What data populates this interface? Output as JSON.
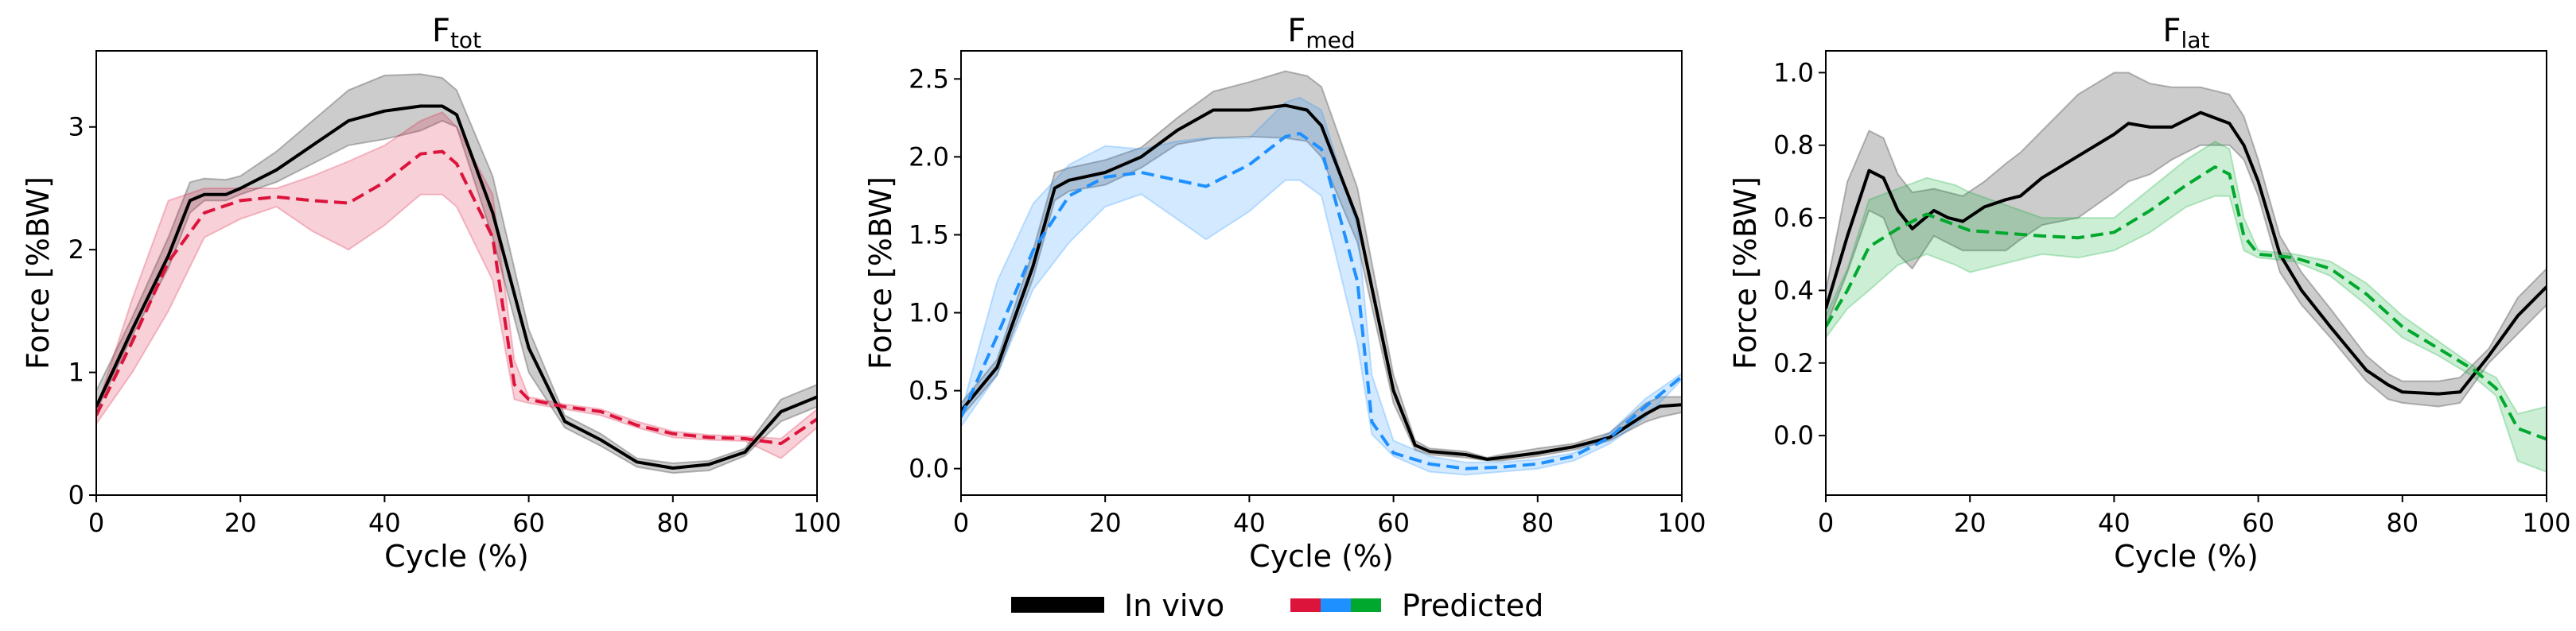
{
  "legend": {
    "invivo_label": "In vivo",
    "predicted_label": "Predicted",
    "invivo_color": "#000000",
    "predicted_colors": [
      "#dc143c",
      "#1e90ff",
      "#00a82d"
    ]
  },
  "chart_data": [
    {
      "type": "line",
      "title": "F",
      "title_sub": "tot",
      "xlabel": "Cycle (%)",
      "ylabel": "Force [%BW]",
      "xlim": [
        0,
        100
      ],
      "ylim": [
        0,
        3.62
      ],
      "xticks": [
        0,
        20,
        40,
        60,
        80,
        100
      ],
      "xtick_labels": [
        "0",
        "20",
        "40",
        "60",
        "80",
        "100"
      ],
      "yticks": [
        0,
        1,
        2,
        3
      ],
      "ytick_labels": [
        "0",
        "1",
        "2",
        "3"
      ],
      "grid": false,
      "series": [
        {
          "name": "In vivo",
          "color": "#000000",
          "style": "solid",
          "x": [
            0,
            5,
            10,
            13,
            15,
            18,
            20,
            25,
            30,
            35,
            40,
            45,
            48,
            50,
            55,
            60,
            65,
            70,
            75,
            80,
            85,
            90,
            95,
            100
          ],
          "mean": [
            0.72,
            1.35,
            1.95,
            2.4,
            2.45,
            2.45,
            2.5,
            2.65,
            2.85,
            3.05,
            3.13,
            3.17,
            3.17,
            3.1,
            2.3,
            1.2,
            0.6,
            0.45,
            0.27,
            0.22,
            0.25,
            0.35,
            0.68,
            0.8
          ],
          "lower": [
            0.68,
            1.3,
            1.85,
            2.3,
            2.4,
            2.4,
            2.45,
            2.55,
            2.7,
            2.85,
            2.9,
            2.97,
            3.05,
            3.0,
            2.1,
            1.0,
            0.55,
            0.4,
            0.23,
            0.18,
            0.2,
            0.32,
            0.6,
            0.72
          ],
          "upper": [
            0.85,
            1.45,
            2.1,
            2.55,
            2.58,
            2.57,
            2.6,
            2.8,
            3.05,
            3.3,
            3.42,
            3.43,
            3.4,
            3.3,
            2.6,
            1.35,
            0.65,
            0.5,
            0.3,
            0.26,
            0.28,
            0.38,
            0.78,
            0.9
          ]
        },
        {
          "name": "Predicted",
          "color": "#dc143c",
          "style": "dashed",
          "x": [
            0,
            5,
            10,
            15,
            20,
            25,
            30,
            35,
            40,
            45,
            48,
            50,
            55,
            58,
            60,
            65,
            70,
            75,
            80,
            85,
            90,
            95,
            100
          ],
          "mean": [
            0.65,
            1.25,
            1.9,
            2.3,
            2.4,
            2.43,
            2.4,
            2.38,
            2.55,
            2.78,
            2.8,
            2.7,
            2.1,
            0.9,
            0.78,
            0.72,
            0.68,
            0.57,
            0.5,
            0.47,
            0.46,
            0.42,
            0.62
          ],
          "lower": [
            0.58,
            1.0,
            1.5,
            2.1,
            2.25,
            2.35,
            2.15,
            2.0,
            2.2,
            2.45,
            2.45,
            2.35,
            1.75,
            0.78,
            0.75,
            0.7,
            0.65,
            0.55,
            0.47,
            0.45,
            0.44,
            0.3,
            0.55
          ],
          "upper": [
            0.7,
            1.6,
            2.4,
            2.5,
            2.5,
            2.5,
            2.6,
            2.72,
            2.85,
            3.05,
            3.12,
            3.0,
            2.45,
            1.1,
            0.8,
            0.74,
            0.7,
            0.6,
            0.52,
            0.49,
            0.48,
            0.46,
            0.7
          ]
        }
      ]
    },
    {
      "type": "line",
      "title": "F",
      "title_sub": "med",
      "xlabel": "Cycle (%)",
      "ylabel": "Force [%BW]",
      "xlim": [
        0,
        100
      ],
      "ylim": [
        -0.17,
        2.68
      ],
      "xticks": [
        0,
        20,
        40,
        60,
        80,
        100
      ],
      "xtick_labels": [
        "0",
        "20",
        "40",
        "60",
        "80",
        "100"
      ],
      "yticks": [
        0,
        0.5,
        1,
        1.5,
        2,
        2.5
      ],
      "ytick_labels": [
        "0.0",
        "0.5",
        "1.0",
        "1.5",
        "2.0",
        "2.5"
      ],
      "grid": false,
      "series": [
        {
          "name": "In vivo",
          "color": "#000000",
          "style": "solid",
          "x": [
            0,
            5,
            10,
            13,
            15,
            20,
            25,
            30,
            35,
            40,
            45,
            48,
            50,
            55,
            60,
            63,
            65,
            70,
            73,
            75,
            80,
            85,
            90,
            95,
            97,
            100
          ],
          "mean": [
            0.37,
            0.65,
            1.3,
            1.8,
            1.85,
            1.9,
            2.0,
            2.17,
            2.3,
            2.3,
            2.33,
            2.3,
            2.2,
            1.6,
            0.5,
            0.15,
            0.11,
            0.09,
            0.06,
            0.07,
            0.1,
            0.14,
            0.2,
            0.35,
            0.4,
            0.41
          ],
          "lower": [
            0.33,
            0.6,
            1.22,
            1.72,
            1.78,
            1.82,
            1.93,
            2.08,
            2.12,
            2.13,
            2.12,
            2.1,
            2.0,
            1.45,
            0.42,
            0.12,
            0.09,
            0.07,
            0.05,
            0.05,
            0.08,
            0.12,
            0.18,
            0.3,
            0.33,
            0.36
          ],
          "upper": [
            0.42,
            0.7,
            1.4,
            1.9,
            1.93,
            1.98,
            2.06,
            2.25,
            2.42,
            2.48,
            2.55,
            2.52,
            2.45,
            1.8,
            0.6,
            0.18,
            0.13,
            0.11,
            0.07,
            0.09,
            0.13,
            0.16,
            0.23,
            0.42,
            0.46,
            0.46
          ]
        },
        {
          "name": "Predicted",
          "color": "#1e90ff",
          "style": "dashed",
          "x": [
            0,
            5,
            10,
            15,
            20,
            25,
            30,
            34,
            40,
            45,
            47,
            50,
            55,
            57,
            60,
            65,
            70,
            75,
            80,
            85,
            90,
            95,
            100
          ],
          "mean": [
            0.33,
            0.85,
            1.4,
            1.75,
            1.87,
            1.9,
            1.85,
            1.81,
            1.95,
            2.13,
            2.15,
            2.05,
            1.2,
            0.3,
            0.1,
            0.03,
            0.0,
            0.01,
            0.03,
            0.08,
            0.2,
            0.4,
            0.59
          ],
          "lower": [
            0.27,
            0.6,
            1.15,
            1.45,
            1.68,
            1.76,
            1.6,
            1.47,
            1.65,
            1.85,
            1.85,
            1.75,
            0.8,
            0.22,
            0.08,
            -0.02,
            -0.04,
            -0.02,
            0.0,
            0.05,
            0.16,
            0.33,
            0.57
          ],
          "upper": [
            0.36,
            1.2,
            1.7,
            1.95,
            2.07,
            2.05,
            2.1,
            2.12,
            2.12,
            2.35,
            2.38,
            2.3,
            1.55,
            0.6,
            0.18,
            0.08,
            0.04,
            0.04,
            0.06,
            0.1,
            0.23,
            0.45,
            0.61
          ]
        }
      ]
    },
    {
      "type": "line",
      "title": "F",
      "title_sub": "lat",
      "xlabel": "Cycle (%)",
      "ylabel": "Force [%BW]",
      "xlim": [
        0,
        100
      ],
      "ylim": [
        -0.164,
        1.06
      ],
      "xticks": [
        0,
        20,
        40,
        60,
        80,
        100
      ],
      "xtick_labels": [
        "0",
        "20",
        "40",
        "60",
        "80",
        "100"
      ],
      "yticks": [
        0,
        0.2,
        0.4,
        0.6,
        0.8,
        1.0
      ],
      "ytick_labels": [
        "0.0",
        "0.2",
        "0.4",
        "0.6",
        "0.8",
        "1.0"
      ],
      "grid": false,
      "series": [
        {
          "name": "In vivo",
          "color": "#000000",
          "style": "solid",
          "x": [
            0,
            3,
            6,
            8,
            10,
            12,
            15,
            17,
            19,
            22,
            25,
            27,
            30,
            35,
            40,
            42,
            45,
            48,
            52,
            56,
            58,
            60,
            63,
            66,
            70,
            75,
            78,
            80,
            85,
            88,
            92,
            96,
            100
          ],
          "mean": [
            0.35,
            0.55,
            0.73,
            0.71,
            0.62,
            0.57,
            0.62,
            0.6,
            0.59,
            0.63,
            0.65,
            0.66,
            0.71,
            0.77,
            0.83,
            0.86,
            0.85,
            0.85,
            0.89,
            0.86,
            0.8,
            0.7,
            0.5,
            0.4,
            0.3,
            0.18,
            0.14,
            0.12,
            0.115,
            0.12,
            0.22,
            0.33,
            0.41
          ],
          "lower": [
            0.3,
            0.45,
            0.62,
            0.6,
            0.5,
            0.46,
            0.55,
            0.53,
            0.51,
            0.51,
            0.51,
            0.54,
            0.58,
            0.6,
            0.67,
            0.7,
            0.72,
            0.76,
            0.8,
            0.8,
            0.76,
            0.66,
            0.45,
            0.36,
            0.27,
            0.15,
            0.1,
            0.09,
            0.08,
            0.09,
            0.2,
            0.28,
            0.36
          ],
          "upper": [
            0.4,
            0.7,
            0.84,
            0.82,
            0.72,
            0.67,
            0.68,
            0.67,
            0.66,
            0.7,
            0.75,
            0.78,
            0.84,
            0.94,
            1.0,
            1.0,
            0.97,
            0.96,
            0.96,
            0.94,
            0.88,
            0.76,
            0.55,
            0.45,
            0.35,
            0.22,
            0.17,
            0.15,
            0.15,
            0.16,
            0.24,
            0.38,
            0.46
          ]
        },
        {
          "name": "Predicted",
          "color": "#00a82d",
          "style": "dashed",
          "x": [
            0,
            3,
            6,
            10,
            14,
            18,
            20,
            30,
            35,
            40,
            45,
            50,
            54,
            56,
            58,
            60,
            65,
            70,
            75,
            80,
            85,
            90,
            93,
            96,
            100
          ],
          "mean": [
            0.3,
            0.4,
            0.52,
            0.57,
            0.61,
            0.58,
            0.565,
            0.55,
            0.545,
            0.56,
            0.62,
            0.69,
            0.74,
            0.72,
            0.55,
            0.5,
            0.49,
            0.46,
            0.39,
            0.3,
            0.24,
            0.18,
            0.13,
            0.02,
            -0.01
          ],
          "lower": [
            0.27,
            0.35,
            0.4,
            0.47,
            0.5,
            0.47,
            0.45,
            0.5,
            0.49,
            0.51,
            0.56,
            0.63,
            0.66,
            0.66,
            0.51,
            0.49,
            0.48,
            0.44,
            0.36,
            0.27,
            0.22,
            0.16,
            0.11,
            -0.07,
            -0.1
          ],
          "upper": [
            0.33,
            0.46,
            0.65,
            0.68,
            0.71,
            0.69,
            0.67,
            0.6,
            0.6,
            0.6,
            0.68,
            0.76,
            0.81,
            0.79,
            0.6,
            0.51,
            0.5,
            0.48,
            0.42,
            0.33,
            0.26,
            0.19,
            0.16,
            0.06,
            0.08
          ]
        }
      ]
    }
  ]
}
